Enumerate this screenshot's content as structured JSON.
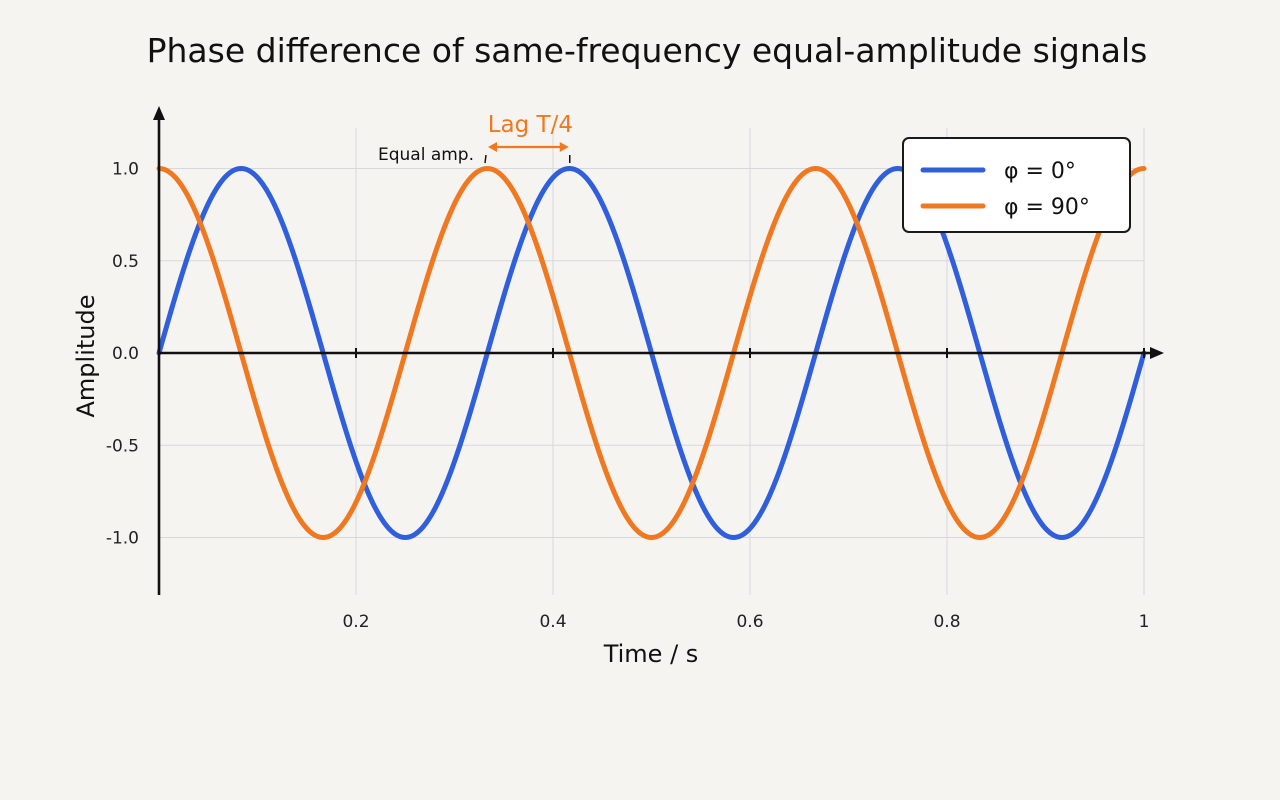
{
  "chart_data": {
    "type": "line",
    "title": "Phase difference of same-frequency equal-amplitude signals",
    "xlabel": "Time / s",
    "ylabel": "Amplitude",
    "xlim": [
      0,
      1
    ],
    "ylim": [
      -1.3,
      1.3
    ],
    "x_ticks": [
      0.2,
      0.4,
      0.6,
      0.8,
      1
    ],
    "x_tick_labels": [
      "0.2",
      "0.4",
      "0.6",
      "0.8",
      "1"
    ],
    "y_ticks": [
      1.0,
      0.5,
      0.0,
      -0.5,
      -1.0
    ],
    "y_tick_labels": [
      "1.0",
      "0.5",
      "0.0",
      "-0.5",
      "-1.0"
    ],
    "grid": true,
    "legend_position": "top-right",
    "frequency_hz": 3,
    "series": [
      {
        "name": "φ = 0°",
        "color": "#2f5fdc",
        "amplitude": 1,
        "phase_deg": 0,
        "x": [
          0,
          0.083,
          0.167,
          0.25,
          0.333,
          0.417,
          0.5,
          0.583,
          0.667,
          0.75,
          0.833,
          0.917,
          1
        ],
        "values": [
          0,
          1,
          0,
          -1,
          0,
          1,
          0,
          -1,
          0,
          1,
          0,
          -1,
          0
        ]
      },
      {
        "name": "φ = 90°",
        "color": "#f07820",
        "amplitude": 1,
        "phase_deg": 90,
        "x": [
          0,
          0.083,
          0.167,
          0.25,
          0.333,
          0.417,
          0.5,
          0.583,
          0.667,
          0.75,
          0.833,
          0.917,
          1
        ],
        "values": [
          1,
          0,
          -1,
          0,
          1,
          0,
          -1,
          0,
          1,
          0,
          -1,
          0,
          1
        ]
      }
    ],
    "annotations": [
      {
        "text": "Equal amp.",
        "x": 0.333,
        "y": 1.0
      },
      {
        "text": "Lag T/4",
        "x_from": 0.333,
        "x_to": 0.417,
        "color": "#f07820"
      }
    ]
  }
}
